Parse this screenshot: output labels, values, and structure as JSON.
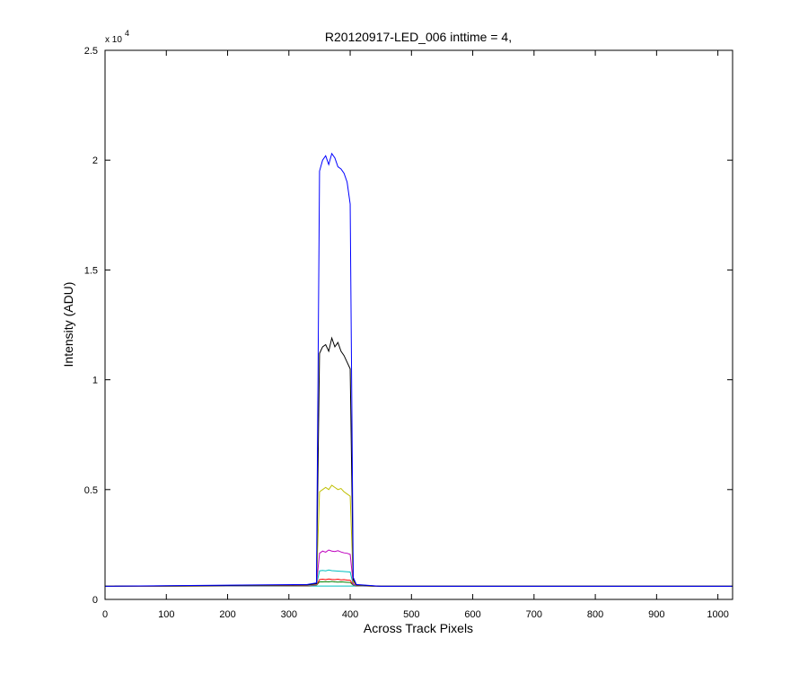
{
  "chart_data": {
    "type": "line",
    "title": "R20120917-LED_006 inttime = 4,",
    "x_label": "Across Track Pixels",
    "y_label": "Intensity (ADU)",
    "y_multiplier": {
      "base": "x 10",
      "exponent": "4"
    },
    "x": [
      0,
      330,
      345,
      350,
      355,
      360,
      365,
      370,
      375,
      380,
      385,
      390,
      395,
      400,
      405,
      410,
      450,
      1024
    ],
    "series": [
      {
        "color": "#00bfbf",
        "values": [
          0.061,
          0.061,
          0.061,
          0.061,
          0.061,
          0.061,
          0.061,
          0.061,
          0.061,
          0.061,
          0.061,
          0.061,
          0.061,
          0.061,
          0.061,
          0.061,
          0.061,
          0.061
        ]
      },
      {
        "color": "#008000",
        "values": [
          0.06,
          0.062,
          0.065,
          0.08,
          0.08,
          0.081,
          0.08,
          0.082,
          0.08,
          0.079,
          0.08,
          0.079,
          0.078,
          0.077,
          0.065,
          0.062,
          0.06,
          0.06
        ]
      },
      {
        "color": "#ff0000",
        "values": [
          0.06,
          0.062,
          0.065,
          0.09,
          0.092,
          0.09,
          0.093,
          0.091,
          0.09,
          0.092,
          0.089,
          0.09,
          0.088,
          0.087,
          0.066,
          0.062,
          0.06,
          0.06
        ]
      },
      {
        "color": "#00bfbf",
        "values": [
          0.06,
          0.063,
          0.066,
          0.13,
          0.132,
          0.13,
          0.134,
          0.131,
          0.13,
          0.129,
          0.128,
          0.127,
          0.126,
          0.125,
          0.067,
          0.063,
          0.06,
          0.06
        ]
      },
      {
        "color": "#bf00bf",
        "values": [
          0.06,
          0.064,
          0.068,
          0.21,
          0.22,
          0.215,
          0.225,
          0.22,
          0.218,
          0.222,
          0.216,
          0.212,
          0.21,
          0.205,
          0.07,
          0.064,
          0.06,
          0.06
        ]
      },
      {
        "color": "#bfbf00",
        "values": [
          0.06,
          0.065,
          0.07,
          0.49,
          0.5,
          0.51,
          0.5,
          0.52,
          0.51,
          0.5,
          0.505,
          0.49,
          0.48,
          0.47,
          0.08,
          0.065,
          0.06,
          0.06
        ]
      },
      {
        "color": "#000000",
        "values": [
          0.06,
          0.066,
          0.072,
          1.12,
          1.15,
          1.16,
          1.13,
          1.19,
          1.15,
          1.17,
          1.13,
          1.11,
          1.08,
          1.05,
          0.09,
          0.066,
          0.06,
          0.06
        ]
      },
      {
        "color": "#0000ff",
        "values": [
          0.06,
          0.068,
          0.075,
          1.95,
          2.0,
          2.02,
          1.98,
          2.03,
          2.01,
          1.97,
          1.96,
          1.94,
          1.9,
          1.8,
          0.1,
          0.068,
          0.06,
          0.06
        ]
      }
    ],
    "xlim": [
      0,
      1024
    ],
    "xticks": [
      0,
      100,
      200,
      300,
      400,
      500,
      600,
      700,
      800,
      900,
      1000
    ],
    "ylim": [
      0,
      2.5
    ],
    "yticks": [
      0,
      0.5,
      1,
      1.5,
      2,
      2.5
    ]
  }
}
